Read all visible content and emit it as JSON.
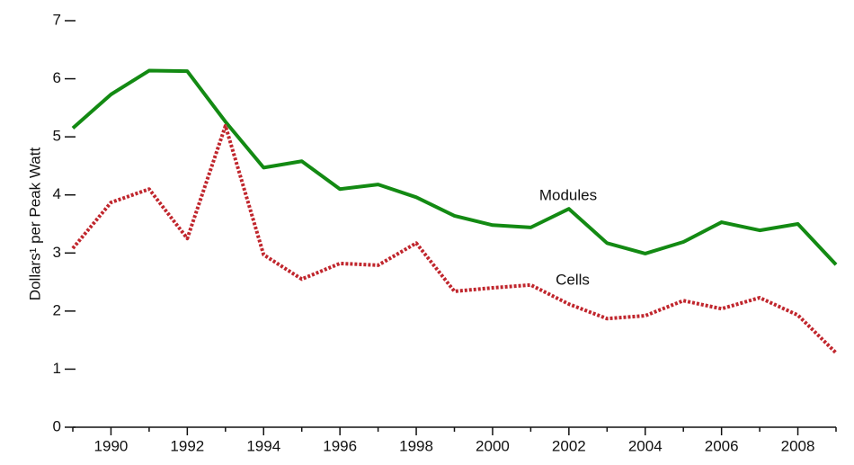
{
  "chart_data": {
    "type": "line",
    "ylabel": "Dollars¹ per Peak Watt",
    "x": [
      1989,
      1990,
      1991,
      1992,
      1993,
      1994,
      1995,
      1996,
      1997,
      1998,
      1999,
      2000,
      2001,
      2002,
      2003,
      2004,
      2005,
      2006,
      2007,
      2008,
      2009
    ],
    "series": [
      {
        "name": "Modules",
        "color": "#138a13",
        "values": [
          5.15,
          5.73,
          6.14,
          6.13,
          5.26,
          4.47,
          4.58,
          4.1,
          4.18,
          3.96,
          3.64,
          3.48,
          3.44,
          3.76,
          3.17,
          2.99,
          3.19,
          3.53,
          3.39,
          3.5,
          2.8
        ]
      },
      {
        "name": "Cells",
        "color": "#c0262d",
        "values": [
          3.08,
          3.87,
          4.1,
          3.25,
          5.19,
          2.97,
          2.55,
          2.82,
          2.79,
          3.17,
          2.34,
          2.4,
          2.45,
          2.12,
          1.87,
          1.92,
          2.18,
          2.04,
          2.23,
          1.93,
          1.28
        ]
      }
    ],
    "xlim": [
      1989,
      2009
    ],
    "xticks": [
      1990,
      1992,
      1994,
      1996,
      1998,
      2000,
      2002,
      2004,
      2006,
      2008
    ],
    "xminorticks": [
      1989,
      1991,
      1993,
      1995,
      1997,
      1999,
      2001,
      2003,
      2005,
      2007,
      2009
    ],
    "ylim": [
      0,
      7
    ],
    "yticks": [
      0,
      1,
      2,
      3,
      4,
      5,
      6,
      7
    ],
    "grid": false
  }
}
